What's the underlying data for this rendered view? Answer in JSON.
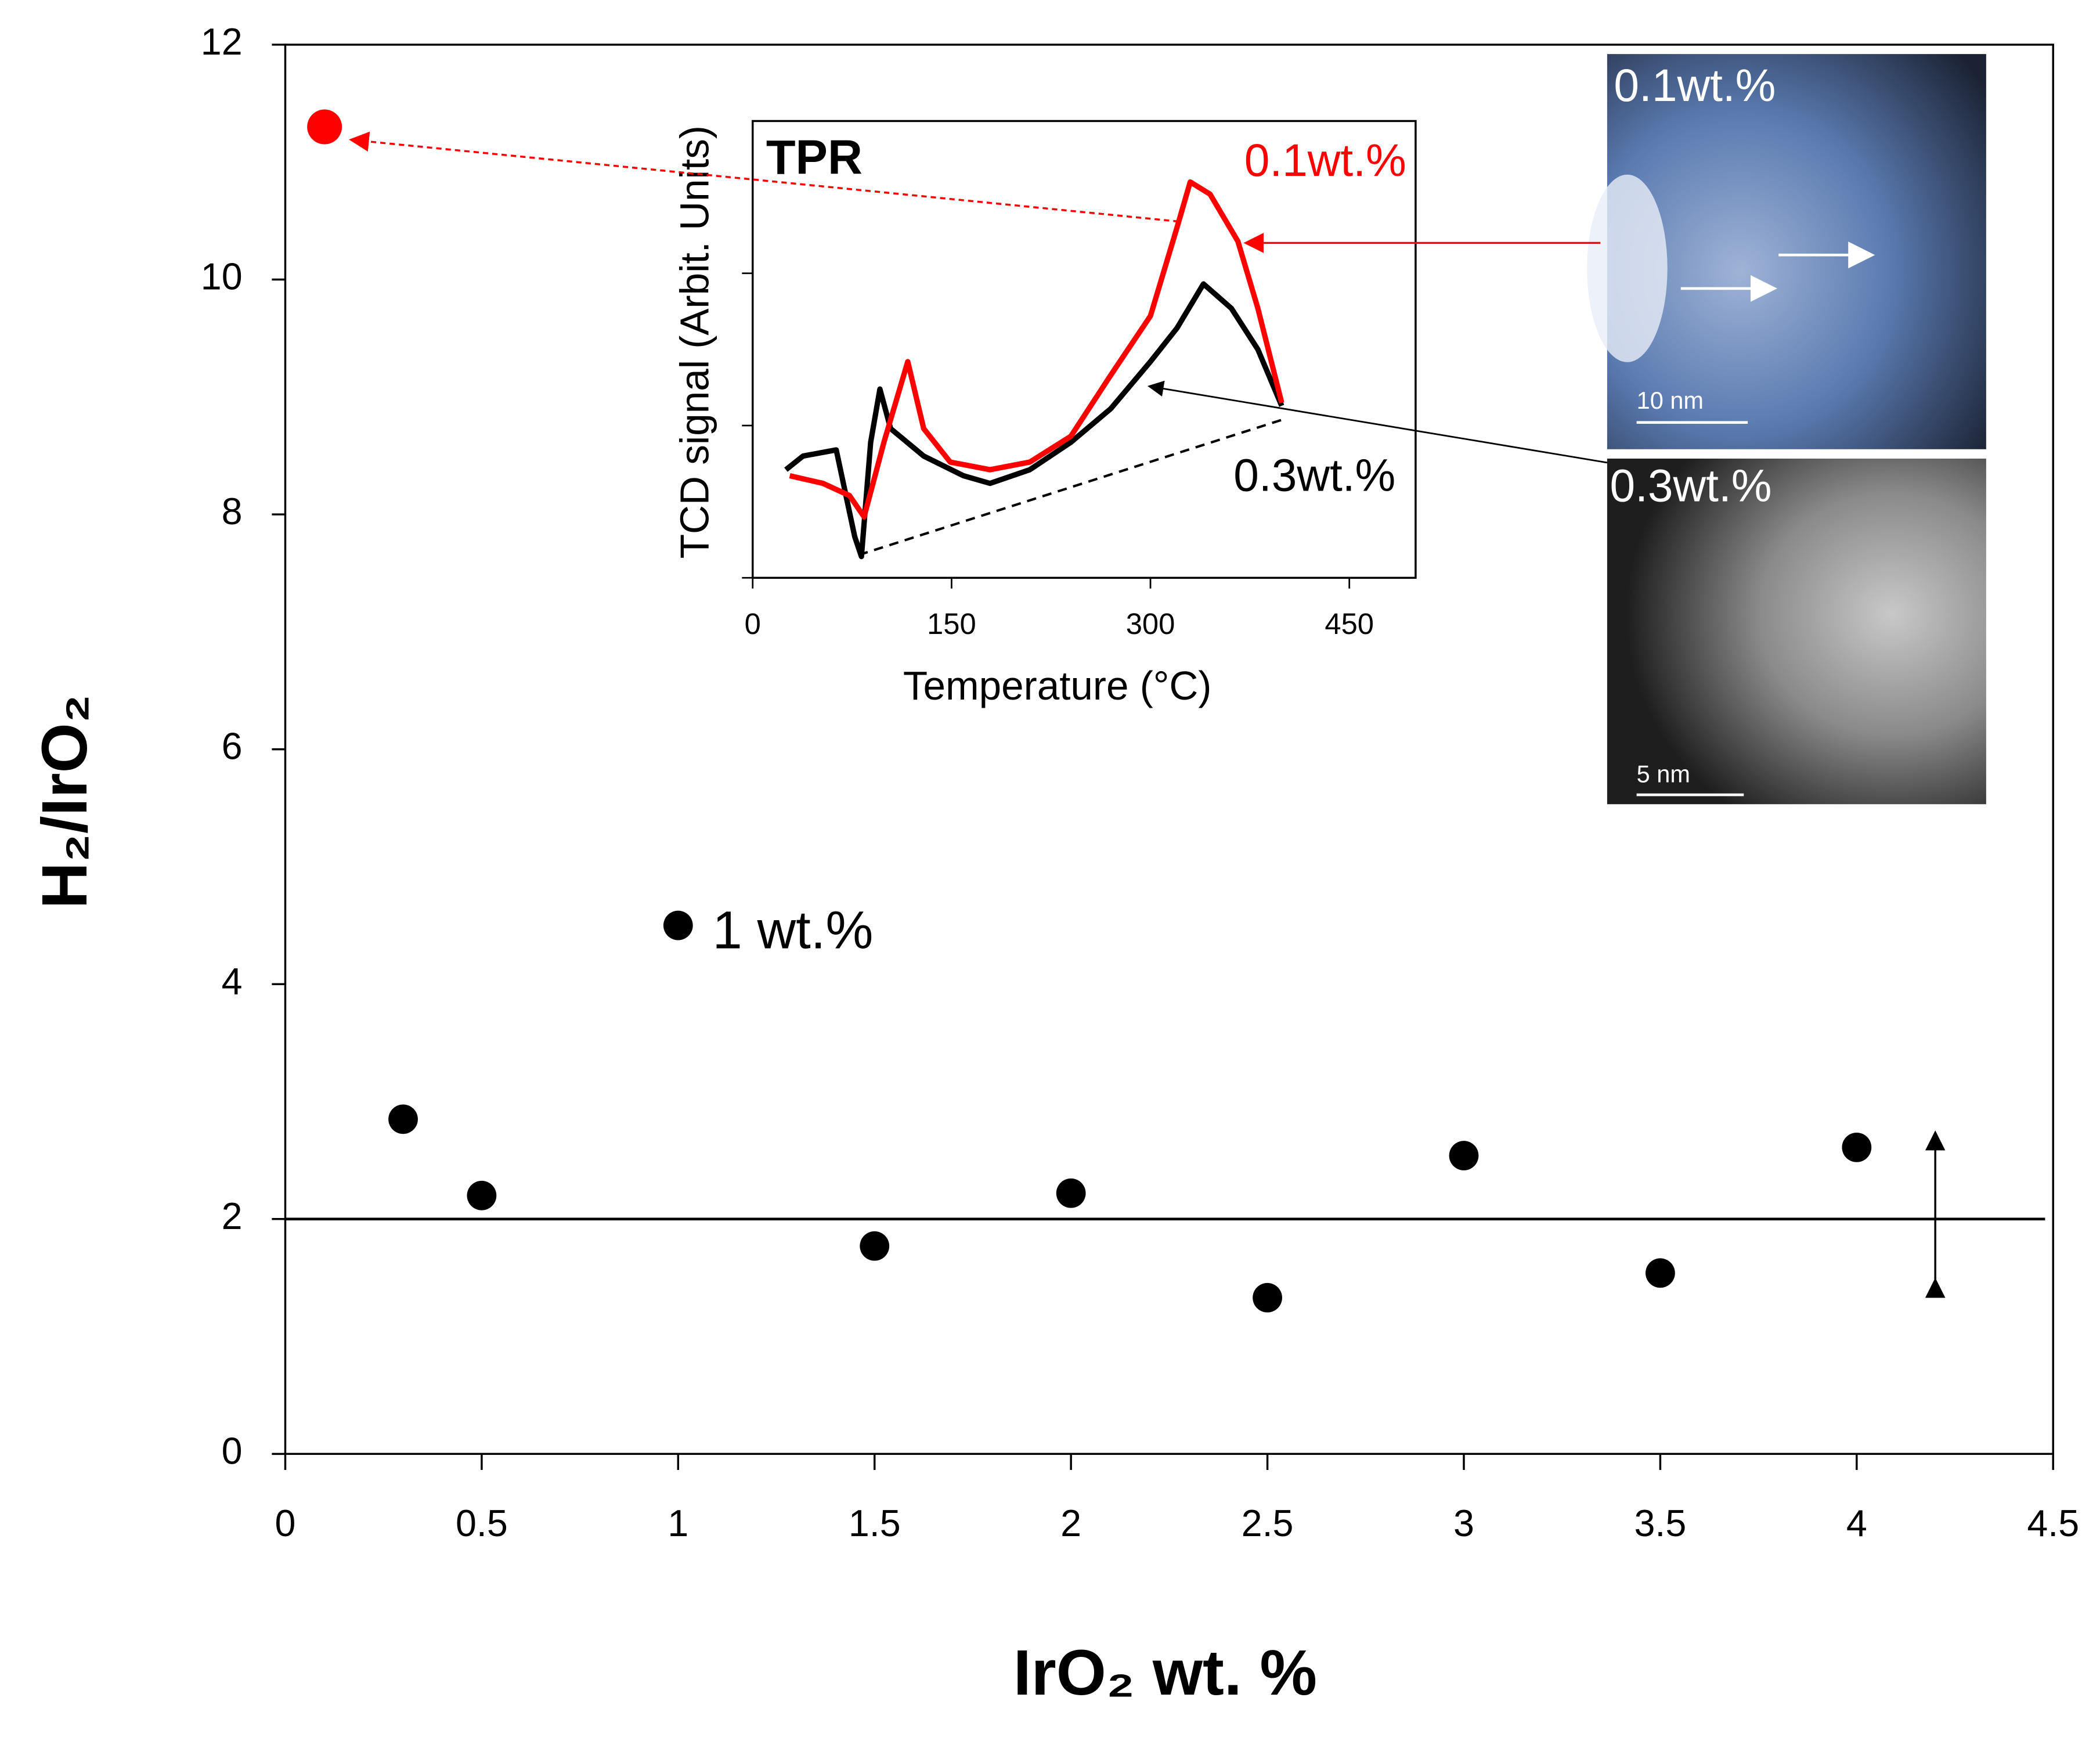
{
  "chart_data": [
    {
      "type": "scatter",
      "x_label": "IrO₂ wt. %",
      "y_label": "H₂/IrO₂",
      "x": [
        0.1,
        0.3,
        0.5,
        1,
        1.5,
        2,
        2.5,
        3,
        3.5,
        4
      ],
      "values": [
        11.3,
        2.85,
        2.2,
        4.5,
        1.77,
        2.22,
        1.33,
        2.54,
        1.54,
        2.61
      ],
      "colors": [
        "#ff0000",
        "#000000",
        "#000000",
        "#000000",
        "#000000",
        "#000000",
        "#000000",
        "#000000",
        "#000000",
        "#000000"
      ],
      "annotation": "1 wt.%",
      "hline": 2,
      "xlim": [
        0,
        4.5
      ],
      "xticks": [
        0,
        0.5,
        1,
        1.5,
        2,
        2.5,
        3,
        3.5,
        4,
        4.5
      ],
      "ylim": [
        0,
        12
      ],
      "yticks": [
        0,
        2,
        4,
        6,
        8,
        10,
        12
      ]
    },
    {
      "type": "line",
      "title": "TPR",
      "x_label": "Temperature (°C)",
      "y_label": "TCD signal (Arbit. Units)",
      "series": [
        {
          "name": "0.1wt.%",
          "color": "#ff0000",
          "x": [
            28,
            53,
            73,
            84,
            99,
            117,
            129,
            149,
            179,
            209,
            240,
            270,
            300,
            320,
            330,
            345,
            366,
            381,
            399
          ],
          "values": [
            0.67,
            0.62,
            0.54,
            0.4,
            0.89,
            1.42,
            0.98,
            0.76,
            0.71,
            0.76,
            0.93,
            1.33,
            1.72,
            2.3,
            2.6,
            2.52,
            2.21,
            1.77,
            1.15
          ]
        },
        {
          "name": "0.3wt.%",
          "color": "#000000",
          "x": [
            25,
            38,
            63,
            77,
            82,
            89,
            96,
            104,
            129,
            159,
            179,
            209,
            240,
            270,
            300,
            320,
            340,
            361,
            381,
            399
          ],
          "values": [
            0.71,
            0.8,
            0.84,
            0.27,
            0.14,
            0.89,
            1.24,
            0.98,
            0.8,
            0.67,
            0.62,
            0.71,
            0.89,
            1.11,
            1.42,
            1.64,
            1.93,
            1.77,
            1.5,
            1.13
          ]
        }
      ],
      "baseline": {
        "x": [
          80,
          400
        ],
        "values": [
          0.15,
          1.04
        ]
      },
      "xlim": [
        0,
        500
      ],
      "xticks": [
        0,
        150,
        300,
        450
      ],
      "ylim": [
        0,
        3
      ],
      "yticks": [
        0,
        1,
        2
      ]
    }
  ],
  "images": [
    {
      "label": "0.1wt.%",
      "scale_bar": "10 nm"
    },
    {
      "label": "0.3wt.%",
      "scale_bar": "5 nm"
    }
  ]
}
